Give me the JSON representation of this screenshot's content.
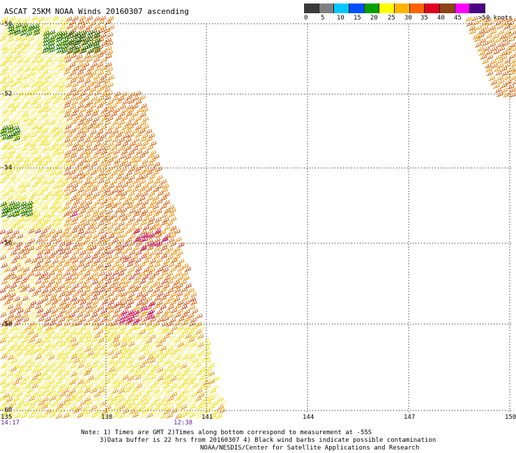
{
  "title": "ASCAT 25KM NOAA Winds 20160307 ascending",
  "legend": {
    "unit": "knots",
    "labels": [
      "0",
      "5",
      "10",
      "15",
      "20",
      "25",
      "30",
      "35",
      "40",
      "45",
      ">50 knots"
    ],
    "colors": [
      "#3a3a3a",
      "#808080",
      "#00c8ff",
      "#0050ff",
      "#00a000",
      "#ffff00",
      "#ffb400",
      "#ff6400",
      "#e00020",
      "#8b4513",
      "#ff00ff",
      "#4b0082"
    ]
  },
  "map": {
    "lat_labels": [
      "-50",
      "-52",
      "-54",
      "-56",
      "-58",
      "-60"
    ],
    "lon_labels": [
      "135",
      "138",
      "141",
      "144",
      "147",
      "150"
    ],
    "time_labels": [
      "14:17",
      "12:38"
    ],
    "barb_colors": {
      "yellow": "#f0dc00",
      "light_yellow": "#f7f070",
      "orange": "#e88a00",
      "dark_orange": "#d45a00",
      "red_orange": "#c83a10",
      "green": "#006400",
      "magenta": "#c8008c"
    }
  },
  "notes": {
    "line1": "Note: 1) Times are GMT 2)Times along bottom correspond to measurement at -55S",
    "line2": "3)Data buffer is 22 hrs from 20160307 4) Black wind barbs indicate possible contamination",
    "line3": "NOAA/NESDIS/Center for Satellite Applications and Research"
  }
}
